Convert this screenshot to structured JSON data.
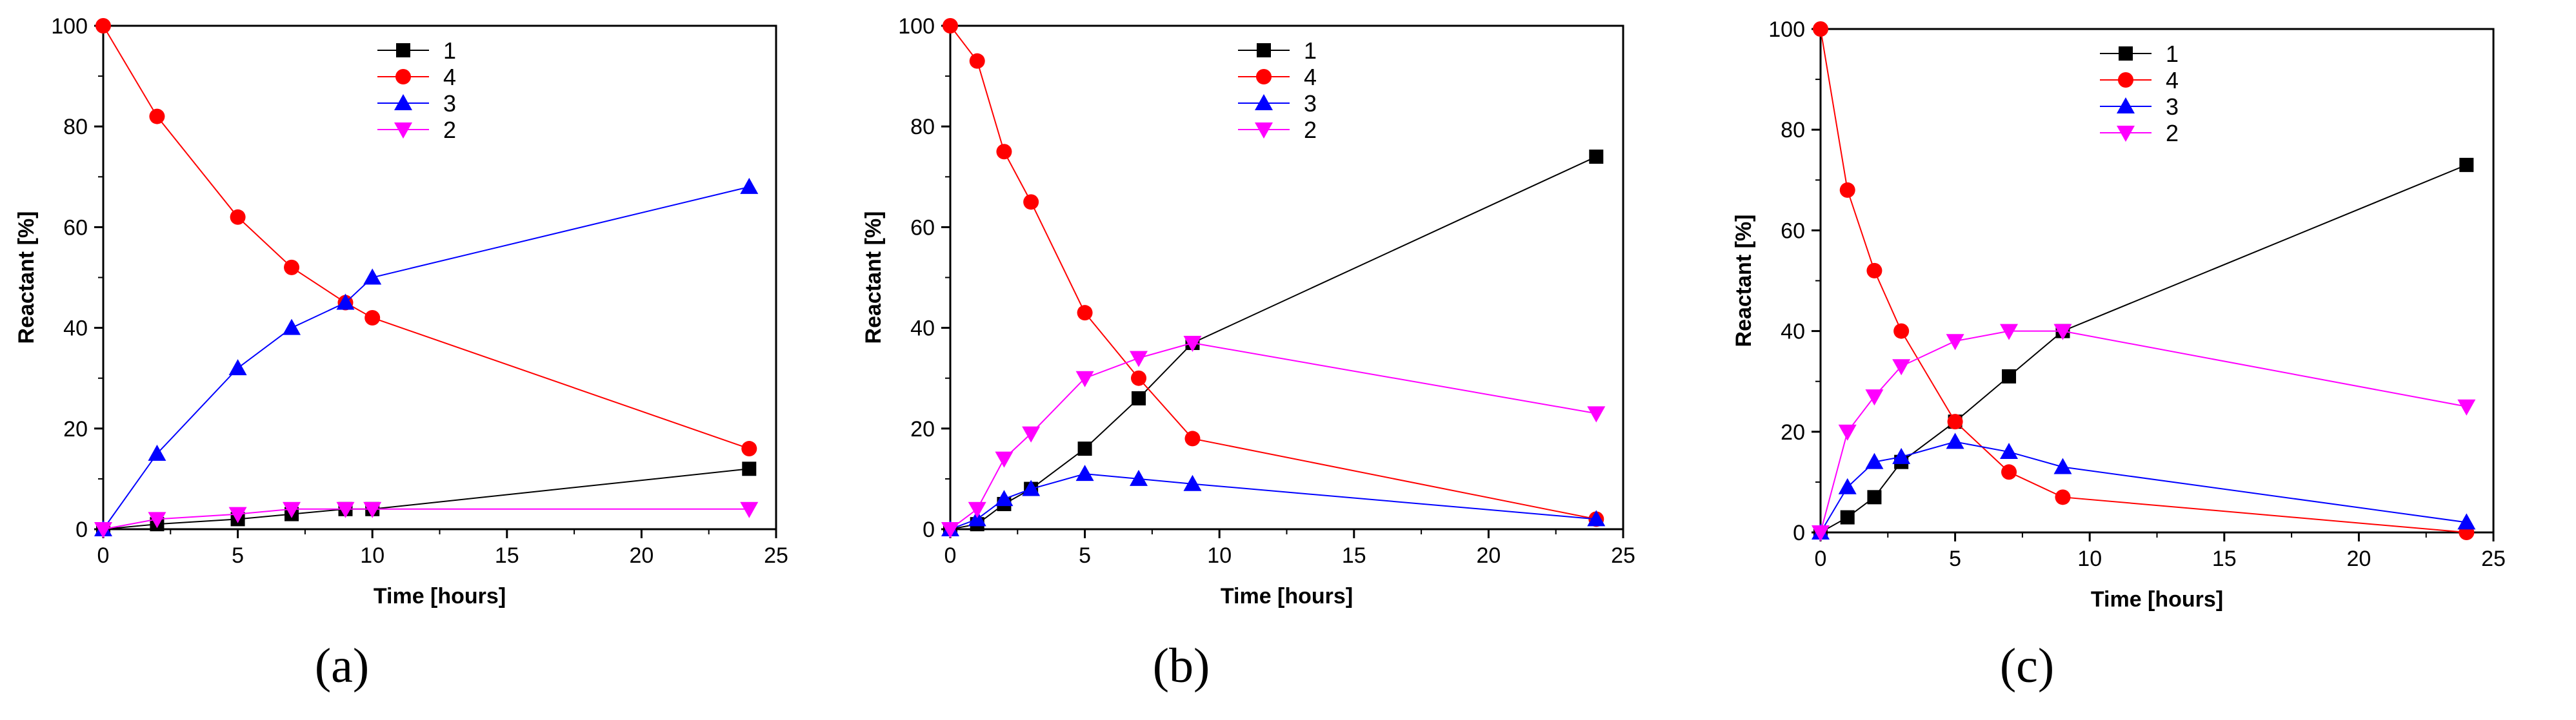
{
  "chart_data": [
    {
      "id": "a",
      "caption": "(a)",
      "type": "line",
      "xlabel": "Time [hours]",
      "ylabel": "Reactant [%]",
      "xlim": [
        0,
        25
      ],
      "ylim": [
        0,
        100
      ],
      "xticks": [
        0,
        5,
        10,
        15,
        20,
        25
      ],
      "yticks": [
        0,
        20,
        40,
        60,
        80,
        100
      ],
      "legend": "top-center",
      "series": [
        {
          "name": "1",
          "color": "#000000",
          "marker": "square",
          "x": [
            0,
            2,
            5,
            7,
            9,
            10,
            24
          ],
          "y": [
            0,
            1,
            2,
            3,
            4,
            4,
            12
          ]
        },
        {
          "name": "4",
          "color": "#ff0000",
          "marker": "circle",
          "x": [
            0,
            2,
            5,
            7,
            9,
            10,
            24
          ],
          "y": [
            100,
            82,
            62,
            52,
            45,
            42,
            16
          ]
        },
        {
          "name": "3",
          "color": "#0000ff",
          "marker": "triangle-up",
          "x": [
            0,
            2,
            5,
            7,
            9,
            10,
            24
          ],
          "y": [
            0,
            15,
            32,
            40,
            45,
            50,
            68
          ]
        },
        {
          "name": "2",
          "color": "#ff00ff",
          "marker": "triangle-down",
          "x": [
            0,
            2,
            5,
            7,
            9,
            10,
            24
          ],
          "y": [
            0,
            2,
            3,
            4,
            4,
            4,
            4
          ]
        }
      ]
    },
    {
      "id": "b",
      "caption": "(b)",
      "type": "line",
      "xlabel": "Time [hours]",
      "ylabel": "Reactant [%]",
      "xlim": [
        0,
        25
      ],
      "ylim": [
        0,
        100
      ],
      "xticks": [
        0,
        5,
        10,
        15,
        20,
        25
      ],
      "yticks": [
        0,
        20,
        40,
        60,
        80,
        100
      ],
      "legend": "top-center",
      "series": [
        {
          "name": "1",
          "color": "#000000",
          "marker": "square",
          "x": [
            0,
            1,
            2,
            3,
            5,
            7,
            9,
            24
          ],
          "y": [
            0,
            1,
            5,
            8,
            16,
            26,
            37,
            74
          ]
        },
        {
          "name": "4",
          "color": "#ff0000",
          "marker": "circle",
          "x": [
            0,
            1,
            2,
            3,
            5,
            7,
            9,
            24
          ],
          "y": [
            100,
            93,
            75,
            65,
            43,
            30,
            18,
            2
          ]
        },
        {
          "name": "3",
          "color": "#0000ff",
          "marker": "triangle-up",
          "x": [
            0,
            1,
            2,
            3,
            5,
            7,
            9,
            24
          ],
          "y": [
            0,
            2,
            6,
            8,
            11,
            10,
            9,
            2
          ]
        },
        {
          "name": "2",
          "color": "#ff00ff",
          "marker": "triangle-down",
          "x": [
            0,
            1,
            2,
            3,
            5,
            7,
            9,
            24
          ],
          "y": [
            0,
            4,
            14,
            19,
            30,
            34,
            37,
            23
          ]
        }
      ]
    },
    {
      "id": "c",
      "caption": "(c)",
      "type": "line",
      "xlabel": "Time [hours]",
      "ylabel": "Reactant [%]",
      "xlim": [
        0,
        25
      ],
      "ylim": [
        0,
        100
      ],
      "xticks": [
        0,
        5,
        10,
        15,
        20,
        25
      ],
      "yticks": [
        0,
        20,
        40,
        60,
        80,
        100
      ],
      "legend": "top-center",
      "series": [
        {
          "name": "1",
          "color": "#000000",
          "marker": "square",
          "x": [
            0,
            1,
            2,
            3,
            5,
            7,
            9,
            24
          ],
          "y": [
            0,
            3,
            7,
            14,
            22,
            31,
            40,
            73
          ]
        },
        {
          "name": "4",
          "color": "#ff0000",
          "marker": "circle",
          "x": [
            0,
            1,
            2,
            3,
            5,
            7,
            9,
            24
          ],
          "y": [
            100,
            68,
            52,
            40,
            22,
            12,
            7,
            0
          ]
        },
        {
          "name": "3",
          "color": "#0000ff",
          "marker": "triangle-up",
          "x": [
            0,
            1,
            2,
            3,
            5,
            7,
            9,
            24
          ],
          "y": [
            0,
            9,
            14,
            15,
            18,
            16,
            13,
            2
          ]
        },
        {
          "name": "2",
          "color": "#ff00ff",
          "marker": "triangle-down",
          "x": [
            0,
            1,
            2,
            3,
            5,
            7,
            9,
            24
          ],
          "y": [
            0,
            20,
            27,
            33,
            38,
            40,
            40,
            25
          ]
        }
      ]
    }
  ]
}
